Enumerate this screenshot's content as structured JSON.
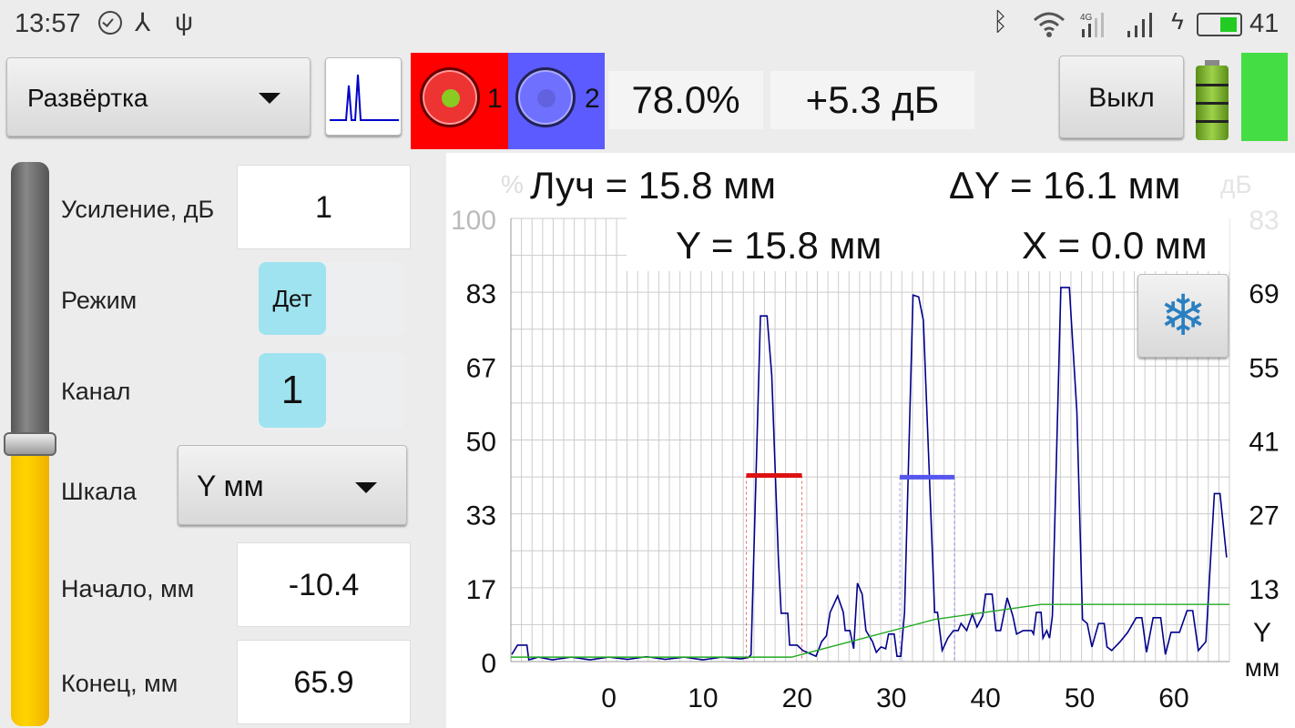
{
  "status_bar": {
    "time": "13:57",
    "battery_percent": "41",
    "icons_left": [
      "check-circle-icon",
      "share-icon",
      "usb-icon"
    ],
    "icons_right": [
      "bluetooth-icon",
      "wifi-icon",
      "signal-4g-icon",
      "signal-icon",
      "charging-icon",
      "battery-icon"
    ]
  },
  "toolbar": {
    "mode_dropdown": "Развёртка",
    "gate1_label": "1",
    "gate2_label": "2",
    "gate1_color": "#ff0000",
    "gate2_color": "#5b5bff",
    "amplitude": "78.0%",
    "gain_db": "+5.3 дБ",
    "off_button": "Выкл",
    "device_battery_level": 1.0,
    "indicator_color": "#44dd44"
  },
  "side_panel": {
    "gain_slider_level": 0.5,
    "gain_label": "Усиление, дБ",
    "gain_value": "1",
    "mode_label": "Режим",
    "mode_value": "Дет",
    "channel_label": "Канал",
    "channel_value": "1",
    "scale_label": "Шкала",
    "scale_value": "Y мм",
    "start_label": "Начало, мм",
    "start_value": "-10.4",
    "end_label": "Конец, мм",
    "end_value": "65.9"
  },
  "measurements": {
    "beam": "Луч = 15.8 мм",
    "delta_y": "ΔY = 16.1 мм",
    "y": "Y = 15.8 мм",
    "x": "X = 0.0 мм"
  },
  "chart_data": {
    "type": "line",
    "left_unit": "%",
    "right_unit": "дБ",
    "xlabel": "Y мм",
    "xlabel_line1": "Y",
    "xlabel_line2": "мм",
    "xlim": [
      -10.4,
      65.9
    ],
    "ylim": [
      0,
      100
    ],
    "x_ticks": [
      0,
      10,
      20,
      30,
      40,
      50,
      60
    ],
    "y_ticks_left": [
      "0",
      "17",
      "33",
      "50",
      "67",
      "83",
      "100"
    ],
    "y_ticks_right": [
      "",
      "13",
      "27",
      "41",
      "55",
      "69",
      "83"
    ],
    "grid": true,
    "series": [
      {
        "role": "echo",
        "color": "#00008b",
        "points": [
          [
            -10.3,
            1.6
          ],
          [
            -9.7,
            3.7
          ],
          [
            -8.7,
            3.7
          ],
          [
            -8.5,
            0.4
          ],
          [
            -7.5,
            1.0
          ],
          [
            -6,
            0.4
          ],
          [
            -4,
            1.0
          ],
          [
            -2,
            0.4
          ],
          [
            0,
            1.0
          ],
          [
            2,
            0.5
          ],
          [
            4,
            1.1
          ],
          [
            6,
            0.5
          ],
          [
            8,
            1.0
          ],
          [
            10,
            0.4
          ],
          [
            12,
            1.0
          ],
          [
            14,
            0.6
          ],
          [
            14.8,
            0.9
          ],
          [
            15.1,
            1.5
          ],
          [
            16.1,
            78
          ],
          [
            16.8,
            78
          ],
          [
            17.3,
            64.6
          ],
          [
            18,
            23.5
          ],
          [
            18.3,
            10.9
          ],
          [
            19,
            10.9
          ],
          [
            19.2,
            3.7
          ],
          [
            20,
            3.7
          ],
          [
            20.6,
            2.5
          ],
          [
            22,
            1.2
          ],
          [
            22.6,
            4.5
          ],
          [
            23.1,
            5.8
          ],
          [
            23.5,
            11.1
          ],
          [
            24.3,
            14.8
          ],
          [
            24.9,
            11.1
          ],
          [
            25.1,
            7.0
          ],
          [
            25.6,
            7.0
          ],
          [
            26,
            2.9
          ],
          [
            26.4,
            17.7
          ],
          [
            26.9,
            15.2
          ],
          [
            27.3,
            7.0
          ],
          [
            28,
            4.5
          ],
          [
            28.4,
            2.1
          ],
          [
            28.9,
            3.3
          ],
          [
            29.4,
            2.9
          ],
          [
            29.7,
            6.2
          ],
          [
            30.3,
            6.2
          ],
          [
            30.6,
            1.2
          ],
          [
            31,
            1.2
          ],
          [
            31.4,
            11.1
          ],
          [
            32.3,
            82.7
          ],
          [
            32.9,
            82.3
          ],
          [
            33.4,
            77
          ],
          [
            34.6,
            11.1
          ],
          [
            34.9,
            11.1
          ],
          [
            35.4,
            2.5
          ],
          [
            36,
            5.3
          ],
          [
            36.6,
            7.0
          ],
          [
            37.1,
            7.0
          ],
          [
            37.4,
            8.6
          ],
          [
            38,
            7.0
          ],
          [
            38.6,
            10.7
          ],
          [
            39.1,
            7.8
          ],
          [
            39.7,
            10.3
          ],
          [
            40,
            15.2
          ],
          [
            40.7,
            15.2
          ],
          [
            41.1,
            7.0
          ],
          [
            41.6,
            7.0
          ],
          [
            42.3,
            14.4
          ],
          [
            42.9,
            10.3
          ],
          [
            43.3,
            6.2
          ],
          [
            44,
            7.0
          ],
          [
            44.9,
            7.0
          ],
          [
            45.1,
            6.2
          ],
          [
            45.4,
            11.1
          ],
          [
            45.9,
            11.1
          ],
          [
            46.1,
            5.3
          ],
          [
            46.5,
            7.0
          ],
          [
            46.8,
            5.3
          ],
          [
            47.1,
            10.3
          ],
          [
            48,
            84.4
          ],
          [
            48.9,
            84.4
          ],
          [
            49.7,
            56.4
          ],
          [
            50.3,
            9.5
          ],
          [
            50.8,
            8.6
          ],
          [
            51.3,
            3.3
          ],
          [
            52,
            8.6
          ],
          [
            52.6,
            8.6
          ],
          [
            52.9,
            3.3
          ],
          [
            53.4,
            2.5
          ],
          [
            54.3,
            4.5
          ],
          [
            55.1,
            6.6
          ],
          [
            56,
            9.9
          ],
          [
            56.6,
            9.9
          ],
          [
            57.1,
            2.1
          ],
          [
            57.8,
            9.9
          ],
          [
            58.6,
            9.9
          ],
          [
            59.1,
            1.6
          ],
          [
            59.7,
            6.6
          ],
          [
            60.6,
            6.6
          ],
          [
            61.4,
            11.5
          ],
          [
            62,
            11.5
          ],
          [
            62.6,
            2.5
          ],
          [
            63.4,
            4.5
          ],
          [
            64.3,
            37.9
          ],
          [
            64.9,
            37.9
          ],
          [
            65.6,
            23.5
          ]
        ]
      },
      {
        "role": "tvg",
        "color": "#22aa22",
        "points": [
          [
            -10.4,
            1.0
          ],
          [
            19.4,
            1.0
          ],
          [
            34.6,
            9.5
          ],
          [
            45.9,
            12.9
          ],
          [
            65.9,
            12.9
          ]
        ]
      }
    ],
    "gates": [
      {
        "name": "1",
        "color": "#dd1111",
        "level": 42.0,
        "start": 14.6,
        "end": 20.5
      },
      {
        "name": "2",
        "color": "#5555ee",
        "level": 41.6,
        "start": 30.9,
        "end": 36.7
      }
    ]
  }
}
